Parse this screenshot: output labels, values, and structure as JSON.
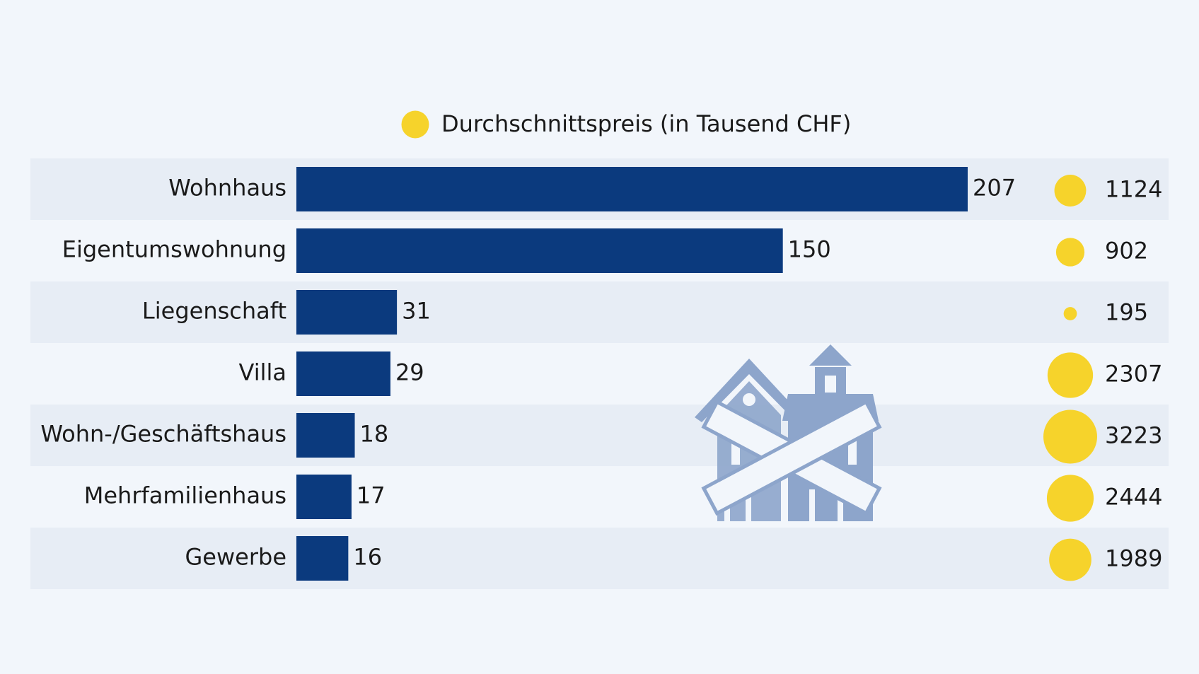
{
  "chart_data": {
    "type": "bar",
    "categories": [
      "Wohnhaus",
      "Eigentumswohnung",
      "Liegenschaft",
      "Villa",
      "Wohn-/Geschäftshaus",
      "Mehrfamilienhaus",
      "Gewerbe"
    ],
    "values": [
      207,
      150,
      31,
      29,
      18,
      17,
      16
    ],
    "color": "#0b3a7e",
    "bubbles": {
      "name": "Durchschnittspreis (in Tausend CHF)",
      "color": "#f6d32b",
      "values": [
        1124,
        902,
        195,
        2307,
        3223,
        2444,
        1989
      ]
    }
  }
}
